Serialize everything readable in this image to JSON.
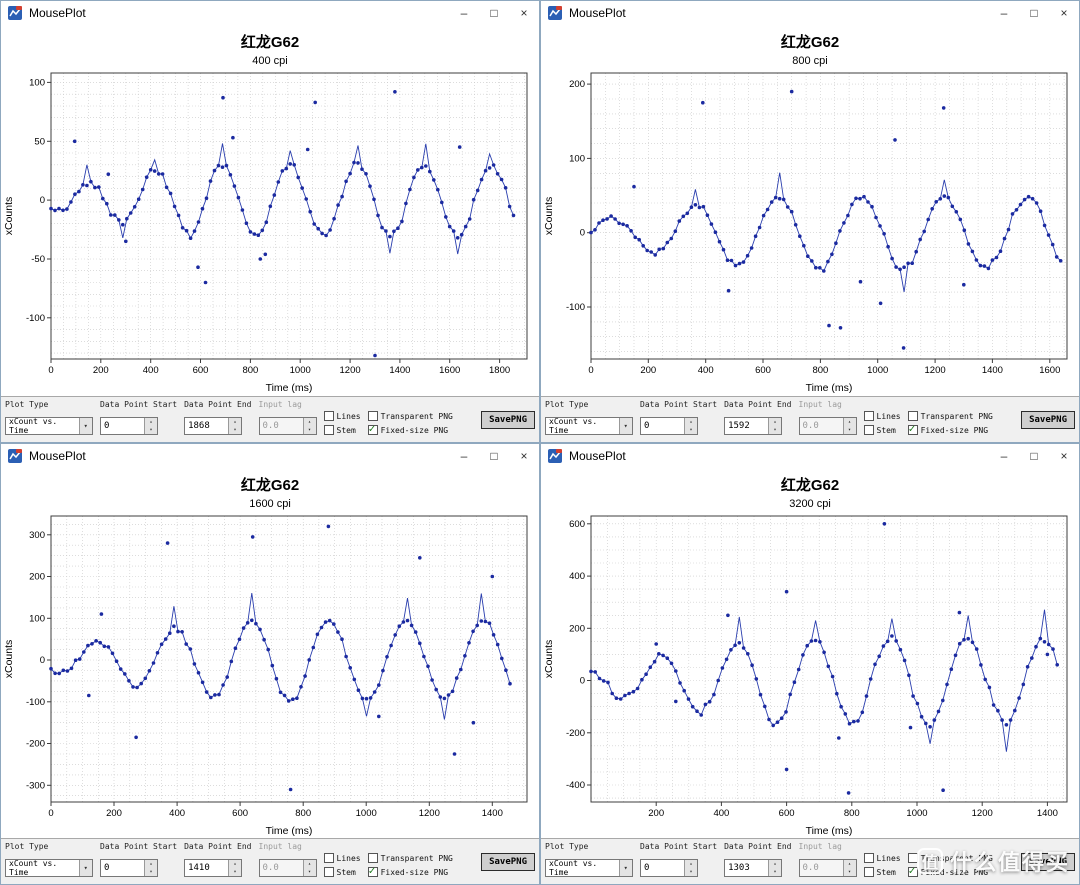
{
  "ui": {
    "window_title": "MousePlot",
    "minimize": "–",
    "maximize": "□",
    "close": "×"
  },
  "watermark": {
    "logo": "值",
    "text": "什么值得买"
  },
  "accent_colors": {
    "series_blue": "#2a3eae",
    "marker_blue": "#1b2aa0",
    "check_green": "#1e7a1e"
  },
  "windows": [
    {
      "chart_data": {
        "type": "line+scatter",
        "title": "红龙G62",
        "subtitle": "400 cpi",
        "xlabel": "Time (ms)",
        "ylabel": "xCounts",
        "xlim": [
          0,
          1910
        ],
        "ylim": [
          -135,
          108
        ],
        "xticks": [
          0,
          200,
          400,
          600,
          800,
          1000,
          1200,
          1400,
          1600,
          1800
        ],
        "yticks": [
          -100,
          -50,
          0,
          50,
          100
        ],
        "grid_x_step": 50,
        "grid_y_step": 10,
        "wave": {
          "amplitude": 30,
          "period": 270,
          "x0": 80,
          "x_end": 1868,
          "dx": 16,
          "noise": 3.2
        },
        "outliers": [
          [
            95,
            50
          ],
          [
            230,
            22
          ],
          [
            300,
            -35
          ],
          [
            590,
            -57
          ],
          [
            620,
            -70
          ],
          [
            690,
            87
          ],
          [
            730,
            53
          ],
          [
            840,
            -50
          ],
          [
            860,
            -46
          ],
          [
            1030,
            43
          ],
          [
            1060,
            83
          ],
          [
            1300,
            -132
          ],
          [
            1380,
            92
          ],
          [
            1640,
            45
          ]
        ]
      },
      "controls": {
        "plot_type_label": "Plot Type",
        "plot_type_value": "xCount vs. Time",
        "start_label": "Data Point Start",
        "start_value": "0",
        "end_label": "Data Point End",
        "end_value": "1868",
        "lag_label": "Input lag",
        "lag_value": "0.0",
        "lines_label": "Lines",
        "lines_checked": false,
        "stem_label": "Stem",
        "stem_checked": false,
        "transparent_label": "Transparent PNG",
        "transparent_checked": false,
        "fixed_label": "Fixed-size PNG",
        "fixed_checked": true,
        "save_label": "SavePNG"
      }
    },
    {
      "chart_data": {
        "type": "line+scatter",
        "title": "红龙G62",
        "subtitle": "800 cpi",
        "xlabel": "Time (ms)",
        "ylabel": "xCounts",
        "xlim": [
          0,
          1660
        ],
        "ylim": [
          -170,
          215
        ],
        "xticks": [
          0,
          200,
          400,
          600,
          800,
          1000,
          1200,
          1400,
          1600
        ],
        "yticks": [
          -100,
          0,
          100,
          200
        ],
        "grid_x_step": 50,
        "grid_y_step": 20,
        "wave": {
          "amplitude": 48,
          "period": 290,
          "x0": 290,
          "x_end": 1640,
          "dx": 14,
          "noise": 4.5
        },
        "outliers": [
          [
            150,
            62
          ],
          [
            390,
            175
          ],
          [
            480,
            -78
          ],
          [
            700,
            190
          ],
          [
            830,
            -125
          ],
          [
            870,
            -128
          ],
          [
            940,
            -66
          ],
          [
            1010,
            -95
          ],
          [
            1060,
            125
          ],
          [
            1090,
            -155
          ],
          [
            1230,
            168
          ],
          [
            1300,
            -70
          ]
        ]
      },
      "controls": {
        "plot_type_label": "Plot Type",
        "plot_type_value": "xCount vs. Time",
        "start_label": "Data Point Start",
        "start_value": "0",
        "end_label": "Data Point End",
        "end_value": "1592",
        "lag_label": "Input lag",
        "lag_value": "0.0",
        "lines_label": "Lines",
        "lines_checked": false,
        "stem_label": "Stem",
        "stem_checked": false,
        "transparent_label": "Transparent PNG",
        "transparent_checked": false,
        "fixed_label": "Fixed-size PNG",
        "fixed_checked": true,
        "save_label": "SavePNG"
      }
    },
    {
      "chart_data": {
        "type": "line+scatter",
        "title": "红龙G62",
        "subtitle": "1600 cpi",
        "xlabel": "Time (ms)",
        "ylabel": "xCounts",
        "xlim": [
          0,
          1510
        ],
        "ylim": [
          -340,
          345
        ],
        "xticks": [
          0,
          200,
          400,
          600,
          800,
          1000,
          1200,
          1400
        ],
        "yticks": [
          -300,
          -200,
          -100,
          0,
          100,
          200,
          300
        ],
        "grid_x_step": 50,
        "grid_y_step": 25,
        "wave": {
          "amplitude": 95,
          "period": 245,
          "x0": 330,
          "x_end": 1460,
          "dx": 13,
          "noise": 8
        },
        "outliers": [
          [
            120,
            -85
          ],
          [
            160,
            110
          ],
          [
            270,
            -185
          ],
          [
            370,
            280
          ],
          [
            640,
            295
          ],
          [
            760,
            -310
          ],
          [
            880,
            320
          ],
          [
            1040,
            -135
          ],
          [
            1170,
            245
          ],
          [
            1280,
            -225
          ],
          [
            1340,
            -150
          ],
          [
            1400,
            200
          ]
        ]
      },
      "controls": {
        "plot_type_label": "Plot Type",
        "plot_type_value": "xCount vs. Time",
        "start_label": "Data Point Start",
        "start_value": "0",
        "end_label": "Data Point End",
        "end_value": "1410",
        "lag_label": "Input lag",
        "lag_value": "0.0",
        "lines_label": "Lines",
        "lines_checked": false,
        "stem_label": "Stem",
        "stem_checked": false,
        "transparent_label": "Transparent PNG",
        "transparent_checked": false,
        "fixed_label": "Fixed-size PNG",
        "fixed_checked": true,
        "save_label": "SavePNG"
      }
    },
    {
      "chart_data": {
        "type": "line+scatter",
        "title": "红龙G62",
        "subtitle": "3200 cpi",
        "xlabel": "Time (ms)",
        "ylabel": "xCounts",
        "xlim": [
          0,
          1460
        ],
        "ylim": [
          -465,
          630
        ],
        "xticks": [
          200,
          400,
          600,
          800,
          1000,
          1200,
          1400
        ],
        "yticks": [
          -400,
          -200,
          0,
          200,
          400,
          600
        ],
        "grid_x_step": 50,
        "grid_y_step": 50,
        "wave": {
          "amplitude": 165,
          "period": 235,
          "x0": 390,
          "x_end": 1430,
          "dx": 13,
          "noise": 14
        },
        "outliers": [
          [
            200,
            140
          ],
          [
            260,
            -80
          ],
          [
            420,
            250
          ],
          [
            600,
            340
          ],
          [
            600,
            -340
          ],
          [
            760,
            -220
          ],
          [
            790,
            -430
          ],
          [
            900,
            600
          ],
          [
            980,
            -180
          ],
          [
            1080,
            -420
          ],
          [
            1130,
            260
          ],
          [
            1400,
            100
          ]
        ]
      },
      "controls": {
        "plot_type_label": "Plot Type",
        "plot_type_value": "xCount vs. Time",
        "start_label": "Data Point Start",
        "start_value": "0",
        "end_label": "Data Point End",
        "end_value": "1303",
        "lag_label": "Input lag",
        "lag_value": "0.0",
        "lines_label": "Lines",
        "lines_checked": false,
        "stem_label": "Stem",
        "stem_checked": false,
        "transparent_label": "Transparent PNG",
        "transparent_checked": false,
        "fixed_label": "Fixed-size PNG",
        "fixed_checked": true,
        "save_label": "SavePNG"
      }
    }
  ]
}
